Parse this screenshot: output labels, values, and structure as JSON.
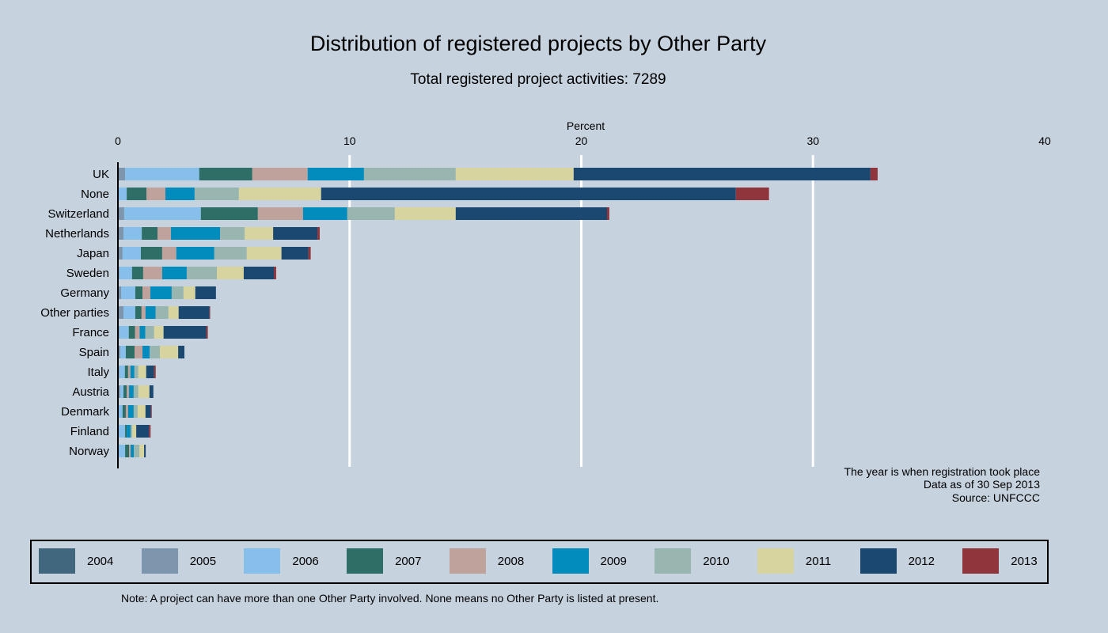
{
  "chart_data": {
    "type": "bar",
    "orientation": "horizontal",
    "stacked": true,
    "title": "Distribution of registered projects by Other Party",
    "subtitle": "Total registered project activities: 7289",
    "xlabel": "Percent",
    "xlim": [
      0,
      40
    ],
    "xticks": [
      "0",
      "10",
      "20",
      "30",
      "40"
    ],
    "grid": true,
    "legend_position": "bottom",
    "categories": [
      "UK",
      "None",
      "Switzerland",
      "Netherlands",
      "Japan",
      "Sweden",
      "Germany",
      "Other parties",
      "France",
      "Spain",
      "Italy",
      "Austria",
      "Denmark",
      "Finland",
      "Norway"
    ],
    "series": [
      {
        "name": "2004",
        "color": "#41677f",
        "values": [
          0,
          0,
          0,
          0,
          0,
          0,
          0,
          0,
          0,
          0,
          0,
          0,
          0,
          0,
          0
        ]
      },
      {
        "name": "2005",
        "color": "#7d96ad",
        "values": [
          0.31,
          0,
          0.27,
          0.24,
          0.2,
          0.06,
          0.14,
          0.24,
          0.06,
          0.1,
          0.06,
          0.1,
          0.03,
          0,
          0
        ]
      },
      {
        "name": "2006",
        "color": "#86bfea",
        "values": [
          3.2,
          0.38,
          3.31,
          0.79,
          0.79,
          0.55,
          0.61,
          0.51,
          0.41,
          0.24,
          0.24,
          0.14,
          0.17,
          0.31,
          0.31
        ]
      },
      {
        "name": "2007",
        "color": "#2d6e66",
        "values": [
          2.29,
          0.85,
          2.46,
          0.68,
          0.92,
          0.48,
          0.31,
          0.27,
          0.27,
          0.38,
          0.14,
          0.14,
          0.14,
          0.07,
          0.17
        ]
      },
      {
        "name": "2008",
        "color": "#bfa29b",
        "values": [
          2.39,
          0.82,
          1.95,
          0.58,
          0.61,
          0.82,
          0.34,
          0.17,
          0.2,
          0.34,
          0.1,
          0.1,
          0.1,
          0,
          0.07
        ]
      },
      {
        "name": "2009",
        "color": "#028bbd",
        "values": [
          2.43,
          1.26,
          1.91,
          2.12,
          1.64,
          1.06,
          0.92,
          0.44,
          0.24,
          0.31,
          0.17,
          0.2,
          0.24,
          0.17,
          0.14
        ]
      },
      {
        "name": "2010",
        "color": "#98b5b0",
        "values": [
          3.96,
          1.91,
          2.05,
          1.06,
          1.4,
          1.3,
          0.51,
          0.55,
          0.38,
          0.44,
          0.17,
          0.2,
          0.17,
          0.07,
          0.24
        ]
      },
      {
        "name": "2011",
        "color": "#d8d4a0",
        "values": [
          5.09,
          3.55,
          2.63,
          1.23,
          1.5,
          1.16,
          0.51,
          0.44,
          0.41,
          0.79,
          0.34,
          0.48,
          0.34,
          0.17,
          0.2
        ]
      },
      {
        "name": "2012",
        "color": "#1b4871",
        "values": [
          12.81,
          17.9,
          6.53,
          1.91,
          1.16,
          1.3,
          0.89,
          1.33,
          1.84,
          0.27,
          0.34,
          0.17,
          0.24,
          0.55,
          0.07
        ]
      },
      {
        "name": "2013",
        "color": "#90353b",
        "values": [
          0.31,
          1.43,
          0.1,
          0.1,
          0.1,
          0.1,
          0,
          0.03,
          0.07,
          0,
          0.07,
          0,
          0.03,
          0.07,
          0
        ]
      }
    ],
    "notes": [
      "The year is when registration took place",
      "Data as of 30 Sep 2013",
      "Source: UNFCCC"
    ],
    "footnote": "Note: A project can have more than one Other Party involved. None means no Other Party is listed at present."
  }
}
